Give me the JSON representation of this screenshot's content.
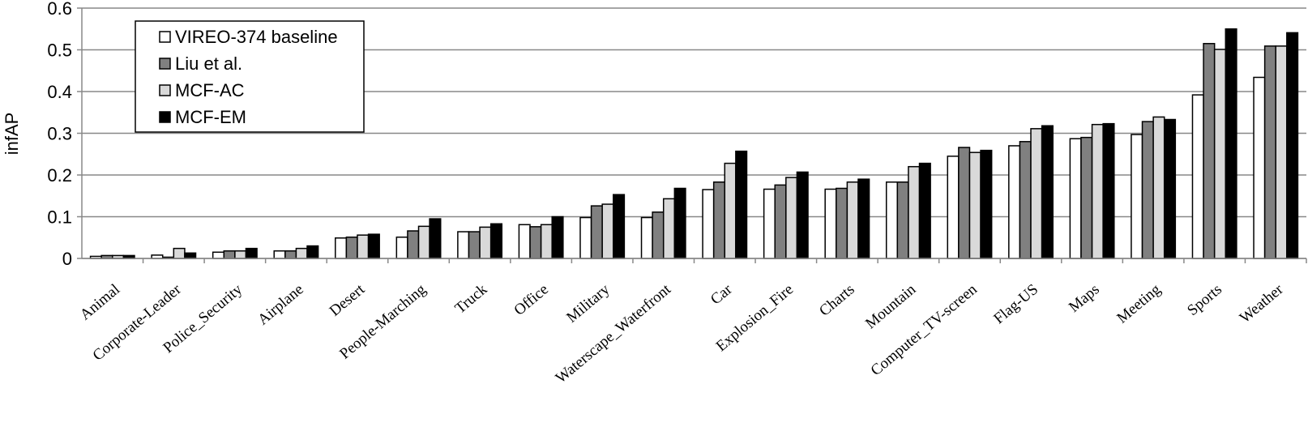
{
  "chart_data": {
    "type": "bar",
    "y_label": "infAP",
    "categories": [
      "Animal",
      "Corporate-Leader",
      "Police_Security",
      "Airplane",
      "Desert",
      "People-Marching",
      "Truck",
      "Office",
      "Military",
      "Waterscape_Waterfront",
      "Car",
      "Explosion_Fire",
      "Charts",
      "Mountain",
      "Computer_TV-screen",
      "Flag-US",
      "Maps",
      "Meeting",
      "Sports",
      "Weather"
    ],
    "series": [
      {
        "name": "VIREO-374 baseline",
        "color": "#ffffff",
        "values": [
          0.005,
          0.008,
          0.015,
          0.018,
          0.049,
          0.051,
          0.064,
          0.081,
          0.098,
          0.098,
          0.165,
          0.166,
          0.166,
          0.183,
          0.245,
          0.27,
          0.287,
          0.297,
          0.392,
          0.434
        ]
      },
      {
        "name": "Liu et al.",
        "color": "#808080",
        "values": [
          0.007,
          0.003,
          0.018,
          0.018,
          0.051,
          0.066,
          0.064,
          0.076,
          0.126,
          0.111,
          0.183,
          0.176,
          0.168,
          0.183,
          0.266,
          0.28,
          0.29,
          0.328,
          0.515,
          0.509
        ]
      },
      {
        "name": "MCF-AC",
        "color": "#d9d9d9",
        "values": [
          0.007,
          0.024,
          0.018,
          0.024,
          0.056,
          0.077,
          0.075,
          0.081,
          0.13,
          0.143,
          0.228,
          0.194,
          0.183,
          0.22,
          0.254,
          0.311,
          0.321,
          0.339,
          0.501,
          0.509
        ]
      },
      {
        "name": "MCF-EM",
        "color": "#000000",
        "values": [
          0.007,
          0.013,
          0.024,
          0.03,
          0.058,
          0.095,
          0.083,
          0.1,
          0.153,
          0.168,
          0.257,
          0.207,
          0.19,
          0.228,
          0.259,
          0.318,
          0.323,
          0.333,
          0.55,
          0.541
        ]
      }
    ],
    "ylim": [
      0,
      0.6
    ],
    "yticks": [
      0,
      0.1,
      0.2,
      0.3,
      0.4,
      0.5,
      0.6
    ],
    "grid": true
  }
}
